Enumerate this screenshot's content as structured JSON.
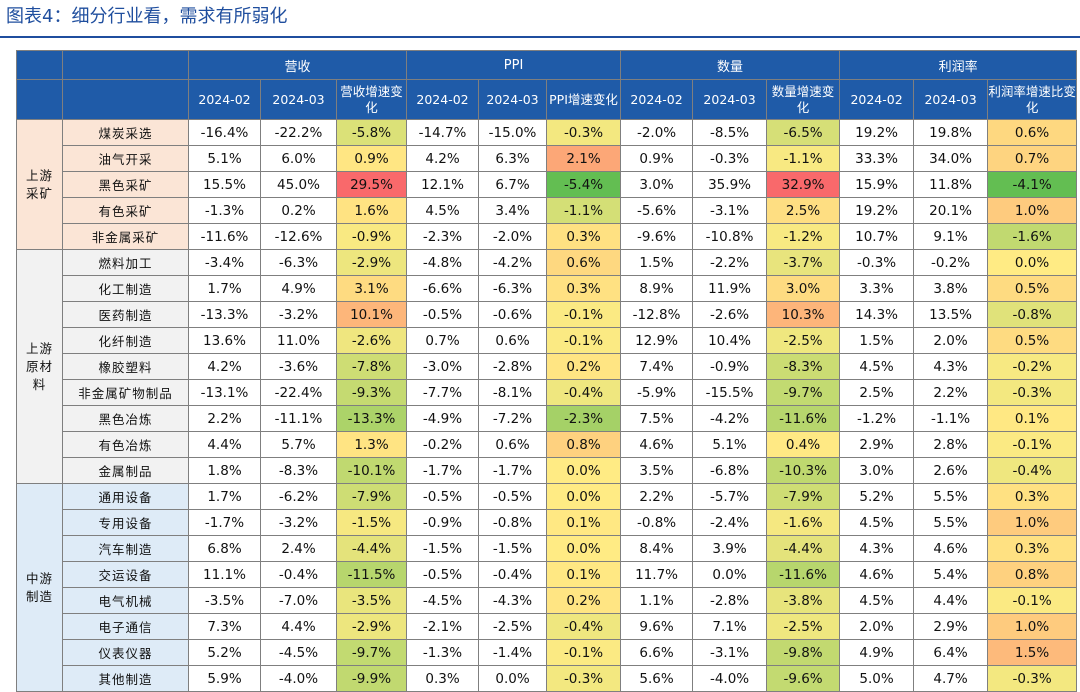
{
  "title": "图表4：细分行业看，需求有所弱化",
  "groups": [
    "营收",
    "PPI",
    "数量",
    "利润率"
  ],
  "subheaders": [
    "2024-02",
    "2024-03",
    "营收增速变化",
    "2024-02",
    "2024-03",
    "PPI增速变化",
    "2024-02",
    "2024-03",
    "数量增速变化",
    "2024-02",
    "2024-03",
    "利润率增速比变化"
  ],
  "colors": {
    "header": "#1f5ba8",
    "title": "#1f4e9e",
    "upstream_mining": "#fbe5d6",
    "upstream_materials": "#f2f2f2",
    "midstream": "#deebf7"
  },
  "sections": [
    {
      "label": "上游采矿",
      "rows": [
        {
          "name": "煤炭采选",
          "v": [
            "-16.4%",
            "-22.2%",
            "-5.8%",
            "-14.7%",
            "-15.0%",
            "-0.3%",
            "-2.0%",
            "-8.5%",
            "-6.5%",
            "19.2%",
            "19.8%",
            "0.6%"
          ]
        },
        {
          "name": "油气开采",
          "v": [
            "5.1%",
            "6.0%",
            "0.9%",
            "4.2%",
            "6.3%",
            "2.1%",
            "0.9%",
            "-0.3%",
            "-1.1%",
            "33.3%",
            "34.0%",
            "0.7%"
          ]
        },
        {
          "name": "黑色采矿",
          "v": [
            "15.5%",
            "45.0%",
            "29.5%",
            "12.1%",
            "6.7%",
            "-5.4%",
            "3.0%",
            "35.9%",
            "32.9%",
            "15.9%",
            "11.8%",
            "-4.1%"
          ]
        },
        {
          "name": "有色采矿",
          "v": [
            "-1.3%",
            "0.2%",
            "1.6%",
            "4.5%",
            "3.4%",
            "-1.1%",
            "-5.6%",
            "-3.1%",
            "2.5%",
            "19.2%",
            "20.1%",
            "1.0%"
          ]
        },
        {
          "name": "非金属采矿",
          "v": [
            "-11.6%",
            "-12.6%",
            "-0.9%",
            "-2.3%",
            "-2.0%",
            "0.3%",
            "-9.6%",
            "-10.8%",
            "-1.2%",
            "10.7%",
            "9.1%",
            "-1.6%"
          ]
        }
      ]
    },
    {
      "label": "上游原材料",
      "rows": [
        {
          "name": "燃料加工",
          "v": [
            "-3.4%",
            "-6.3%",
            "-2.9%",
            "-4.8%",
            "-4.2%",
            "0.6%",
            "1.5%",
            "-2.2%",
            "-3.7%",
            "-0.3%",
            "-0.2%",
            "0.0%"
          ]
        },
        {
          "name": "化工制造",
          "v": [
            "1.7%",
            "4.9%",
            "3.1%",
            "-6.6%",
            "-6.3%",
            "0.3%",
            "8.9%",
            "11.9%",
            "3.0%",
            "3.3%",
            "3.8%",
            "0.5%"
          ]
        },
        {
          "name": "医药制造",
          "v": [
            "-13.3%",
            "-3.2%",
            "10.1%",
            "-0.5%",
            "-0.6%",
            "-0.1%",
            "-12.8%",
            "-2.6%",
            "10.3%",
            "14.3%",
            "13.5%",
            "-0.8%"
          ]
        },
        {
          "name": "化纤制造",
          "v": [
            "13.6%",
            "11.0%",
            "-2.6%",
            "0.7%",
            "0.6%",
            "-0.1%",
            "12.9%",
            "10.4%",
            "-2.5%",
            "1.5%",
            "2.0%",
            "0.5%"
          ]
        },
        {
          "name": "橡胶塑料",
          "v": [
            "4.2%",
            "-3.6%",
            "-7.8%",
            "-3.0%",
            "-2.8%",
            "0.2%",
            "7.4%",
            "-0.9%",
            "-8.3%",
            "4.5%",
            "4.3%",
            "-0.2%"
          ]
        },
        {
          "name": "非金属矿物制品",
          "v": [
            "-13.1%",
            "-22.4%",
            "-9.3%",
            "-7.7%",
            "-8.1%",
            "-0.4%",
            "-5.9%",
            "-15.5%",
            "-9.7%",
            "2.5%",
            "2.2%",
            "-0.3%"
          ]
        },
        {
          "name": "黑色冶炼",
          "v": [
            "2.2%",
            "-11.1%",
            "-13.3%",
            "-4.9%",
            "-7.2%",
            "-2.3%",
            "7.5%",
            "-4.2%",
            "-11.6%",
            "-1.2%",
            "-1.1%",
            "0.1%"
          ]
        },
        {
          "name": "有色冶炼",
          "v": [
            "4.4%",
            "5.7%",
            "1.3%",
            "-0.2%",
            "0.6%",
            "0.8%",
            "4.6%",
            "5.1%",
            "0.4%",
            "2.9%",
            "2.8%",
            "-0.1%"
          ]
        },
        {
          "name": "金属制品",
          "v": [
            "1.8%",
            "-8.3%",
            "-10.1%",
            "-1.7%",
            "-1.7%",
            "0.0%",
            "3.5%",
            "-6.8%",
            "-10.3%",
            "3.0%",
            "2.6%",
            "-0.4%"
          ]
        }
      ]
    },
    {
      "label": "中游制造",
      "rows": [
        {
          "name": "通用设备",
          "v": [
            "1.7%",
            "-6.2%",
            "-7.9%",
            "-0.5%",
            "-0.5%",
            "0.0%",
            "2.2%",
            "-5.7%",
            "-7.9%",
            "5.2%",
            "5.5%",
            "0.3%"
          ]
        },
        {
          "name": "专用设备",
          "v": [
            "-1.7%",
            "-3.2%",
            "-1.5%",
            "-0.9%",
            "-0.8%",
            "0.1%",
            "-0.8%",
            "-2.4%",
            "-1.6%",
            "4.5%",
            "5.5%",
            "1.0%"
          ]
        },
        {
          "name": "汽车制造",
          "v": [
            "6.8%",
            "2.4%",
            "-4.4%",
            "-1.5%",
            "-1.5%",
            "0.0%",
            "8.4%",
            "3.9%",
            "-4.4%",
            "4.3%",
            "4.6%",
            "0.3%"
          ]
        },
        {
          "name": "交运设备",
          "v": [
            "11.1%",
            "-0.4%",
            "-11.5%",
            "-0.5%",
            "-0.4%",
            "0.1%",
            "11.7%",
            "0.0%",
            "-11.6%",
            "4.6%",
            "5.4%",
            "0.8%"
          ]
        },
        {
          "name": "电气机械",
          "v": [
            "-3.5%",
            "-7.0%",
            "-3.5%",
            "-4.5%",
            "-4.3%",
            "0.2%",
            "1.1%",
            "-2.8%",
            "-3.8%",
            "4.5%",
            "4.4%",
            "-0.1%"
          ]
        },
        {
          "name": "电子通信",
          "v": [
            "7.3%",
            "4.4%",
            "-2.9%",
            "-2.1%",
            "-2.5%",
            "-0.4%",
            "9.6%",
            "7.1%",
            "-2.5%",
            "2.0%",
            "2.9%",
            "1.0%"
          ]
        },
        {
          "name": "仪表仪器",
          "v": [
            "5.2%",
            "-4.5%",
            "-9.7%",
            "-1.3%",
            "-1.4%",
            "-0.1%",
            "6.6%",
            "-3.1%",
            "-9.8%",
            "4.9%",
            "6.4%",
            "1.5%"
          ]
        },
        {
          "name": "其他制造",
          "v": [
            "5.9%",
            "-4.0%",
            "-9.9%",
            "0.3%",
            "0.0%",
            "-0.3%",
            "5.6%",
            "-4.0%",
            "-9.6%",
            "5.0%",
            "4.7%",
            "-0.3%"
          ]
        }
      ]
    }
  ]
}
